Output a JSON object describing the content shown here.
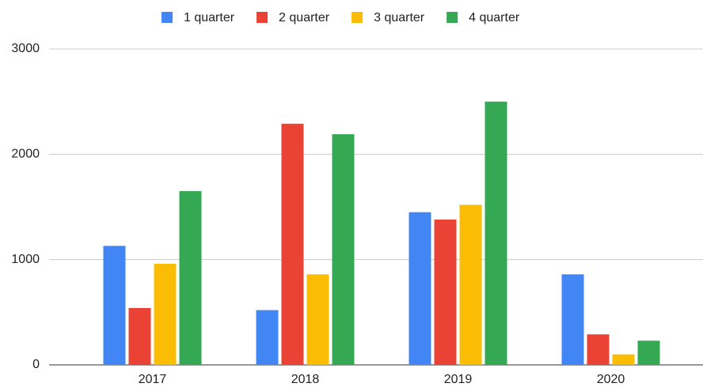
{
  "chart_data": {
    "type": "bar",
    "categories": [
      "2017",
      "2018",
      "2019",
      "2020"
    ],
    "series": [
      {
        "name": "1 quarter",
        "color": "#4285f4",
        "values": [
          1130,
          520,
          1450,
          860
        ]
      },
      {
        "name": "2 quarter",
        "color": "#ea4335",
        "values": [
          540,
          2290,
          1380,
          290
        ]
      },
      {
        "name": "3 quarter",
        "color": "#fbbc04",
        "values": [
          960,
          860,
          1520,
          100
        ]
      },
      {
        "name": "4 quarter",
        "color": "#34a853",
        "values": [
          1650,
          2190,
          2500,
          230
        ]
      }
    ],
    "ylim": [
      0,
      3000
    ],
    "yticks": [
      0,
      1000,
      2000,
      3000
    ],
    "grid": true,
    "legend": "top"
  }
}
